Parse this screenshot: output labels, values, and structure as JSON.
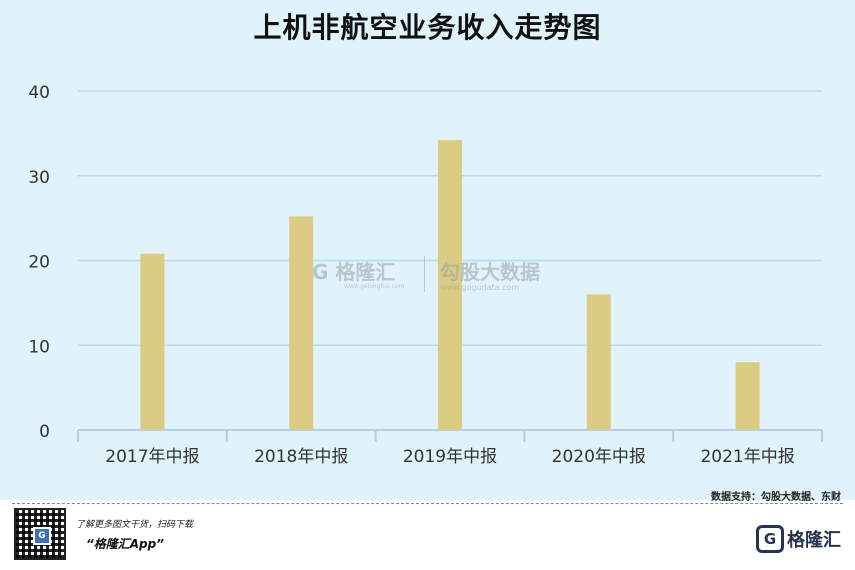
{
  "chart_data": {
    "type": "bar",
    "title": "上机非航空业务收入走势图",
    "categories": [
      "2017年中报",
      "2018年中报",
      "2019年中报",
      "2020年中报",
      "2021年中报"
    ],
    "values": [
      20.8,
      25.2,
      34.2,
      16.0,
      8.0
    ],
    "ylim": [
      0,
      40
    ],
    "yticks": [
      0,
      10,
      20,
      30,
      40
    ],
    "grid": true,
    "bar_color": "#dccb82",
    "background": "#e0f3fb"
  },
  "watermark": {
    "brand1": "格隆汇",
    "brand1_url": "www.gelonghui.com",
    "brand2": "勾股大数据",
    "brand2_url": "www.gogudata.com"
  },
  "source": "数据支持：勾股大数据、东财",
  "footer": {
    "promo": "了解更多图文干货，扫码下载",
    "app_name": "“格隆汇App”",
    "logo_text": "格隆汇"
  }
}
